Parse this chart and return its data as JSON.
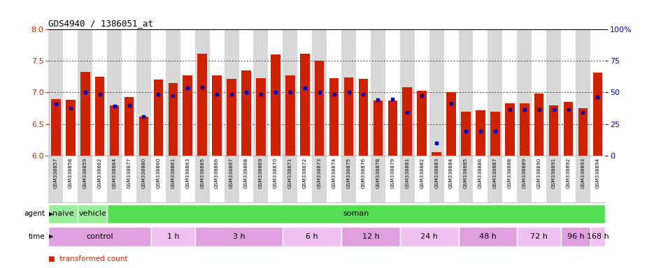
{
  "title": "GDS4940 / 1386051_at",
  "samples": [
    "GSM338857",
    "GSM338858",
    "GSM338859",
    "GSM338862",
    "GSM338864",
    "GSM338877",
    "GSM338880",
    "GSM338860",
    "GSM338861",
    "GSM338863",
    "GSM338865",
    "GSM338866",
    "GSM338867",
    "GSM338868",
    "GSM338869",
    "GSM338870",
    "GSM338871",
    "GSM338872",
    "GSM338873",
    "GSM338874",
    "GSM338875",
    "GSM338876",
    "GSM338878",
    "GSM338879",
    "GSM338881",
    "GSM338882",
    "GSM338883",
    "GSM338884",
    "GSM338885",
    "GSM338886",
    "GSM338887",
    "GSM338888",
    "GSM338889",
    "GSM338890",
    "GSM338891",
    "GSM338892",
    "GSM338893",
    "GSM338894"
  ],
  "red_values": [
    6.9,
    6.88,
    7.33,
    7.25,
    6.8,
    6.93,
    6.62,
    7.2,
    7.15,
    7.27,
    7.62,
    7.27,
    7.22,
    7.35,
    7.23,
    7.6,
    7.27,
    7.62,
    7.5,
    7.23,
    7.24,
    7.22,
    6.87,
    6.87,
    7.08,
    7.03,
    6.05,
    7.0,
    6.7,
    6.72,
    6.7,
    6.83,
    6.83,
    6.98,
    6.8,
    6.85,
    6.75,
    7.32
  ],
  "blue_values": [
    6.82,
    6.75,
    7.0,
    6.97,
    6.78,
    6.8,
    6.62,
    6.97,
    6.95,
    7.07,
    7.08,
    6.97,
    6.97,
    7.0,
    6.97,
    7.0,
    7.0,
    7.07,
    7.0,
    6.97,
    7.0,
    6.97,
    6.88,
    6.9,
    6.68,
    6.95,
    6.2,
    6.83,
    6.38,
    6.38,
    6.38,
    6.73,
    6.73,
    6.73,
    6.73,
    6.73,
    6.68,
    6.93
  ],
  "ymin": 6.0,
  "ymax": 8.0,
  "yticks_left": [
    6.0,
    6.5,
    7.0,
    7.5,
    8.0
  ],
  "right_yticks": [
    0,
    25,
    50,
    75,
    100
  ],
  "bar_color": "#CC2200",
  "blue_color": "#0000BB",
  "agent_row": [
    {
      "label": "naive",
      "start": 0,
      "end": 2,
      "color": "#99EE99"
    },
    {
      "label": "vehicle",
      "start": 2,
      "end": 4,
      "color": "#99EE99"
    },
    {
      "label": "soman",
      "start": 4,
      "end": 38,
      "color": "#55DD55"
    }
  ],
  "time_row": [
    {
      "label": "control",
      "start": 0,
      "end": 7,
      "color": "#E0A0E0"
    },
    {
      "label": "1 h",
      "start": 7,
      "end": 10,
      "color": "#F0C0F0"
    },
    {
      "label": "3 h",
      "start": 10,
      "end": 16,
      "color": "#E0A0E0"
    },
    {
      "label": "6 h",
      "start": 16,
      "end": 20,
      "color": "#F0C0F0"
    },
    {
      "label": "12 h",
      "start": 20,
      "end": 24,
      "color": "#E0A0E0"
    },
    {
      "label": "24 h",
      "start": 24,
      "end": 28,
      "color": "#F0C0F0"
    },
    {
      "label": "48 h",
      "start": 28,
      "end": 32,
      "color": "#E0A0E0"
    },
    {
      "label": "72 h",
      "start": 32,
      "end": 35,
      "color": "#F0C0F0"
    },
    {
      "label": "96 h",
      "start": 35,
      "end": 37,
      "color": "#E0A0E0"
    },
    {
      "label": "168 h",
      "start": 37,
      "end": 38,
      "color": "#F0C0F0"
    }
  ]
}
